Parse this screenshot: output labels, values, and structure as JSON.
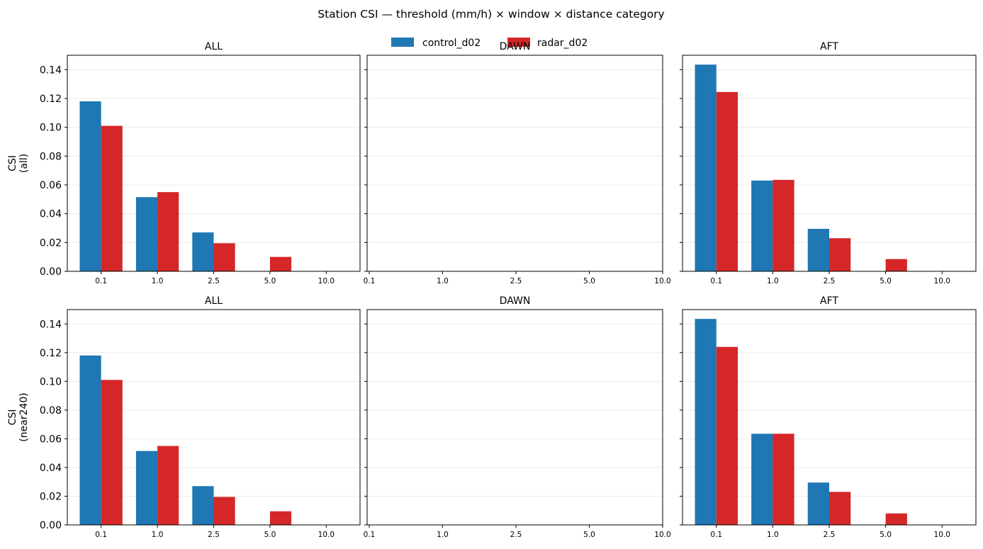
{
  "figure": {
    "suptitle": "Station CSI — threshold (mm/h) × window × distance category"
  },
  "legend": {
    "placement": "top-center",
    "entries": [
      {
        "name": "control_d02",
        "color": "#1f77b4"
      },
      {
        "name": "radar_d02",
        "color": "#d62728"
      }
    ]
  },
  "chart_data": [
    {
      "type": "bar",
      "title": "ALL",
      "ylabel": "CSI\n(all)",
      "ylim": [
        0,
        0.15
      ],
      "yticks": [
        "0.00",
        "0.02",
        "0.04",
        "0.06",
        "0.08",
        "0.10",
        "0.12",
        "0.14"
      ],
      "categories": [
        "0.1",
        "1.0",
        "2.5",
        "5.0",
        "10.0"
      ],
      "grid": "y",
      "series": [
        {
          "name": "control_d02",
          "values": [
            0.118,
            0.0515,
            0.027,
            0,
            0
          ]
        },
        {
          "name": "radar_d02",
          "values": [
            0.101,
            0.055,
            0.0195,
            0.01,
            0
          ]
        }
      ]
    },
    {
      "type": "bar",
      "title": "DAWN",
      "ylabel": "",
      "ylim": [
        0,
        0.15
      ],
      "yticks": [],
      "categories": [
        "0.1",
        "1.0",
        "2.5",
        "5.0",
        "10.0"
      ],
      "grid": "y",
      "series": []
    },
    {
      "type": "bar",
      "title": "AFT",
      "ylabel": "",
      "ylim": [
        0,
        0.15
      ],
      "yticks": [],
      "categories": [
        "0.1",
        "1.0",
        "2.5",
        "5.0",
        "10.0"
      ],
      "grid": "y",
      "series": [
        {
          "name": "control_d02",
          "values": [
            0.1435,
            0.063,
            0.0295,
            0,
            0
          ]
        },
        {
          "name": "radar_d02",
          "values": [
            0.1245,
            0.0635,
            0.023,
            0.0085,
            0
          ]
        }
      ]
    },
    {
      "type": "bar",
      "title": "ALL",
      "ylabel": "CSI\n(near240)",
      "ylim": [
        0,
        0.15
      ],
      "yticks": [
        "0.00",
        "0.02",
        "0.04",
        "0.06",
        "0.08",
        "0.10",
        "0.12",
        "0.14"
      ],
      "categories": [
        "0.1",
        "1.0",
        "2.5",
        "5.0",
        "10.0"
      ],
      "grid": "y",
      "series": [
        {
          "name": "control_d02",
          "values": [
            0.118,
            0.0515,
            0.027,
            0,
            0
          ]
        },
        {
          "name": "radar_d02",
          "values": [
            0.101,
            0.055,
            0.0195,
            0.0095,
            0
          ]
        }
      ]
    },
    {
      "type": "bar",
      "title": "DAWN",
      "ylabel": "",
      "ylim": [
        0,
        0.15
      ],
      "yticks": [],
      "categories": [
        "0.1",
        "1.0",
        "2.5",
        "5.0",
        "10.0"
      ],
      "grid": "y",
      "series": []
    },
    {
      "type": "bar",
      "title": "AFT",
      "ylabel": "",
      "ylim": [
        0,
        0.15
      ],
      "yticks": [],
      "categories": [
        "0.1",
        "1.0",
        "2.5",
        "5.0",
        "10.0"
      ],
      "grid": "y",
      "series": [
        {
          "name": "control_d02",
          "values": [
            0.1435,
            0.0635,
            0.0295,
            0,
            0
          ]
        },
        {
          "name": "radar_d02",
          "values": [
            0.124,
            0.0635,
            0.023,
            0.008,
            0
          ]
        }
      ]
    }
  ]
}
